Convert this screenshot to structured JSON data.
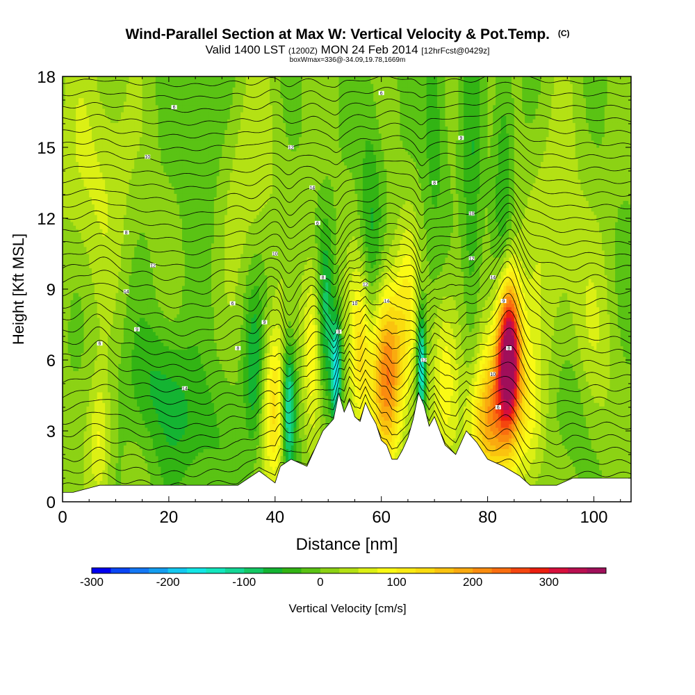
{
  "chart_data": {
    "type": "heatmap",
    "title": "Wind-Parallel Section at Max W: Vertical Velocity & Pot.Temp.",
    "copyright": "(C)",
    "subtitle": {
      "valid": "Valid 1400 LST",
      "utc": "(1200Z)",
      "date": "MON 24 Feb 2014",
      "forecast": "[12hrFcst@0429z]"
    },
    "note": "boxWmax=336@-34.09,19.78,1669m",
    "xlabel": "Distance [nm]",
    "ylabel": "Height [Kft MSL]",
    "xlim": [
      0,
      107
    ],
    "ylim": [
      0,
      18
    ],
    "xticks": [
      0,
      20,
      40,
      60,
      80,
      100
    ],
    "yticks": [
      0,
      3,
      6,
      9,
      12,
      15,
      18
    ],
    "colorbar": {
      "label": "Vertical Velocity [cm/s]",
      "min": -300,
      "max": 375,
      "step": 25,
      "ticks": [
        -300,
        -200,
        -100,
        0,
        100,
        200,
        300
      ],
      "colors": [
        "#0000f0",
        "#0a46f5",
        "#1478f5",
        "#149ef0",
        "#14c8f0",
        "#14e6e6",
        "#14e6be",
        "#14d796",
        "#14c864",
        "#14b432",
        "#32b414",
        "#5ac314",
        "#8cd214",
        "#b4e114",
        "#dcf014",
        "#fafa14",
        "#faeb14",
        "#fadc0f",
        "#fac30f",
        "#faaa0f",
        "#fa8c0f",
        "#fa6e0f",
        "#f5460f",
        "#eb1e0f",
        "#d70f3c",
        "#b90f50",
        "#a00f5a"
      ]
    },
    "theta_contours": {
      "variable": "Potential Temperature",
      "units": "K",
      "spacing": 1
    },
    "max_w": 336,
    "terrain_profile": {
      "distance_nm": [
        0,
        2,
        7,
        12,
        20,
        27,
        33,
        37,
        40,
        41,
        43,
        46,
        49,
        51,
        52,
        53,
        54,
        55,
        56,
        57,
        58,
        59,
        60,
        61,
        62,
        63,
        64,
        65,
        66,
        67,
        68,
        69,
        70,
        72,
        74,
        76,
        78,
        80,
        83,
        86,
        88,
        90,
        93,
        96,
        100,
        107
      ],
      "height_kft": [
        0.4,
        0.4,
        0.7,
        0.7,
        0.7,
        0.7,
        0.7,
        1.3,
        0.8,
        1.5,
        1.8,
        1.5,
        3.0,
        3.5,
        4.6,
        3.8,
        4.3,
        3.6,
        3.4,
        4.2,
        3.7,
        3.3,
        2.6,
        2.4,
        1.8,
        1.8,
        2.2,
        2.7,
        3.5,
        4.6,
        4.1,
        3.2,
        3.6,
        2.4,
        2.0,
        3.0,
        2.5,
        1.8,
        1.5,
        1.1,
        0.7,
        0.7,
        0.7,
        1.0,
        1.0,
        1.0
      ],
      "fill": "#ffffff"
    },
    "w_features": [
      {
        "x": 84.0,
        "z": 6.5,
        "w": 336,
        "sx": 1.5,
        "sz": 2.2
      },
      {
        "x": 61.0,
        "z": 5.5,
        "w": 230,
        "sx": 2.2,
        "sz": 2.6
      },
      {
        "x": 82.5,
        "z": 4.5,
        "w": 150,
        "sx": 2.8,
        "sz": 2.2
      },
      {
        "x": 79.0,
        "z": 3.0,
        "w": 110,
        "sx": 2.5,
        "sz": 1.8
      },
      {
        "x": 56.0,
        "z": 6.5,
        "w": 120,
        "sx": 1.4,
        "sz": 2.5
      },
      {
        "x": 40.0,
        "z": 4.0,
        "w": 130,
        "sx": 1.6,
        "sz": 2.4
      },
      {
        "x": 47.0,
        "z": 6.5,
        "w": 100,
        "sx": 1.2,
        "sz": 2.5
      },
      {
        "x": 72.0,
        "z": 5.5,
        "w": 90,
        "sx": 1.8,
        "sz": 2.5
      },
      {
        "x": 88.0,
        "z": 3.5,
        "w": 70,
        "sx": 2.0,
        "sz": 2.5
      },
      {
        "x": 7.0,
        "z": 2.5,
        "w": 80,
        "sx": 1.5,
        "sz": 2.0
      },
      {
        "x": 65.0,
        "z": 8.5,
        "w": 70,
        "sx": 1.5,
        "sz": 2.5
      },
      {
        "x": 6.0,
        "z": 14.0,
        "w": 50,
        "sx": 5.0,
        "sz": 3.5
      },
      {
        "x": 35.0,
        "z": 14.0,
        "w": 40,
        "sx": 4.0,
        "sz": 3.0
      },
      {
        "x": 93.0,
        "z": 11.0,
        "w": 45,
        "sx": 4.0,
        "sz": 4.0
      },
      {
        "x": 100.0,
        "z": 6.0,
        "w": 35,
        "sx": 3.0,
        "sz": 3.0
      },
      {
        "x": 42.5,
        "z": 4.0,
        "w": -160,
        "sx": 0.9,
        "sz": 2.0
      },
      {
        "x": 51.5,
        "z": 5.5,
        "w": -170,
        "sx": 0.7,
        "sz": 1.6
      },
      {
        "x": 67.5,
        "z": 5.8,
        "w": -175,
        "sx": 0.6,
        "sz": 1.7
      },
      {
        "x": 36.0,
        "z": 5.5,
        "w": -75,
        "sx": 1.3,
        "sz": 2.5
      },
      {
        "x": 49.5,
        "z": 8.0,
        "w": -80,
        "sx": 1.0,
        "sz": 2.5
      },
      {
        "x": 58.0,
        "z": 11.0,
        "w": -60,
        "sx": 1.5,
        "sz": 4.0
      },
      {
        "x": 77.0,
        "z": 12.0,
        "w": -55,
        "sx": 1.2,
        "sz": 5.0
      },
      {
        "x": 83.0,
        "z": 14.0,
        "w": -55,
        "sx": 1.2,
        "sz": 4.0
      },
      {
        "x": 18.0,
        "z": 5.0,
        "w": -55,
        "sx": 4.0,
        "sz": 2.0
      },
      {
        "x": 25.0,
        "z": 3.0,
        "w": -45,
        "sx": 4.0,
        "sz": 2.0
      },
      {
        "x": 70.0,
        "z": 16.5,
        "w": -50,
        "sx": 1.5,
        "sz": 3.5
      },
      {
        "x": 26.0,
        "z": 16.0,
        "w": -40,
        "sx": 3.0,
        "sz": 3.0
      },
      {
        "x": 96.0,
        "z": 4.0,
        "w": -40,
        "sx": 2.5,
        "sz": 2.0
      }
    ],
    "contour_labels": [
      "6",
      "8",
      "9",
      "10",
      "12",
      "14"
    ]
  }
}
